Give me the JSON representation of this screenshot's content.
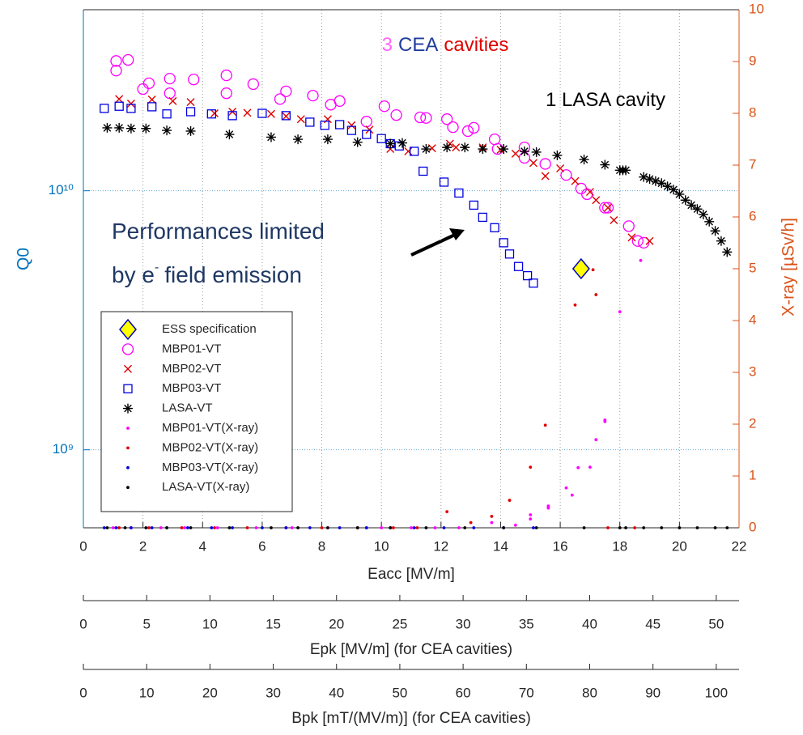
{
  "chart_data": {
    "type": "scatter",
    "xlabel": "Eacc [MV/m]",
    "ylabel": "Q0",
    "y2label": "X-ray [µSv/h]",
    "xlim": [
      0,
      22
    ],
    "xticks": [
      0,
      2,
      4,
      6,
      8,
      10,
      12,
      14,
      16,
      18,
      20,
      22
    ],
    "ylim": [
      500000000,
      50000000000
    ],
    "yscale": "log",
    "yticks": [
      {
        "value": 1000000000,
        "label": "10⁹"
      },
      {
        "value": 10000000000,
        "label": "10¹⁰"
      }
    ],
    "y2lim": [
      0,
      10
    ],
    "y2ticks": [
      0,
      1,
      2,
      3,
      4,
      5,
      6,
      7,
      8,
      9,
      10
    ],
    "y_color": "#0072bd",
    "y2_color": "#d95319",
    "grid": true,
    "legend": "lower left",
    "extra_x_axes": [
      {
        "label": "Epk [MV/m] (for CEA cavities)",
        "xlim": [
          0,
          51.8
        ],
        "xticks": [
          0,
          5,
          10,
          15,
          20,
          25,
          30,
          35,
          40,
          45,
          50
        ]
      },
      {
        "label": "Bpk [mT/(MV/m)] (for CEA cavities)",
        "xlim": [
          0,
          103.6
        ],
        "xticks": [
          0,
          10,
          20,
          30,
          40,
          50,
          60,
          70,
          80,
          90,
          100
        ]
      }
    ],
    "annotations": [
      {
        "parts": [
          {
            "text": "3",
            "color": "#ff66ff"
          },
          {
            "text": "CEA",
            "color": "#1f3c9c"
          },
          {
            "text": "cavities",
            "color": "#e00000"
          }
        ]
      },
      {
        "parts": [
          {
            "text": "1 LASA cavity",
            "color": "#000000"
          }
        ]
      },
      {
        "parts": [
          {
            "text": "Performances limited",
            "color": "#1f3864"
          }
        ]
      },
      {
        "parts": [
          {
            "text": "by e",
            "color": "#1f3864"
          },
          {
            "text": "-",
            "color": "#1f3864",
            "sup": true
          },
          {
            "text": "field emission",
            "color": "#1f3864"
          }
        ]
      }
    ],
    "series": [
      {
        "name": "ESS specification",
        "color": "#ffff00",
        "marker": "diamond",
        "axis": "y",
        "x": [
          16.7
        ],
        "values": [
          5000000000
        ]
      },
      {
        "name": "MBP01-VT",
        "color": "#ff00ff",
        "marker": "circle",
        "axis": "y",
        "x": [
          1.1,
          1.1,
          1.5,
          2.0,
          2.2,
          2.9,
          2.9,
          3.7,
          4.8,
          4.8,
          5.7,
          6.6,
          6.8,
          7.7,
          8.3,
          8.6,
          9.5,
          10.1,
          10.5,
          11.3,
          11.5,
          12.2,
          12.4,
          12.9,
          13.1,
          13.8,
          13.9,
          14.8,
          14.8,
          15.5,
          16.2,
          16.7,
          16.9,
          17.5,
          17.6,
          18.3,
          18.6,
          18.8
        ],
        "values": [
          31700000000,
          29100000000,
          32000000000,
          24700000000,
          26000000000,
          27100000000,
          23800000000,
          26900000000,
          27900000000,
          23800000000,
          25800000000,
          22600000000,
          24200000000,
          23300000000,
          21500000000,
          22200000000,
          18500000000,
          21200000000,
          19600000000,
          19200000000,
          19100000000,
          18900000000,
          17600000000,
          17000000000,
          17500000000,
          15800000000,
          14500000000,
          14700000000,
          13400000000,
          12700000000,
          11500000000,
          10200000000,
          9700000000,
          8600000000,
          8600000000,
          7300000000,
          6400000000,
          6300000000
        ]
      },
      {
        "name": "MBP02-VT",
        "color": "#e00000",
        "marker": "x",
        "axis": "y",
        "x": [
          1.2,
          1.6,
          2.3,
          3.0,
          3.6,
          4.4,
          5.0,
          5.5,
          6.3,
          6.8,
          7.3,
          8.2,
          9.0,
          9.6,
          10.3,
          10.9,
          11.7,
          12.3,
          12.5,
          13.4,
          14.0,
          14.5,
          15.1,
          15.5,
          16.0,
          16.5,
          17.0,
          17.2,
          17.6,
          17.8,
          18.4,
          19.0
        ],
        "values": [
          22600000000,
          21700000000,
          22500000000,
          22200000000,
          22000000000,
          19900000000,
          20200000000,
          20000000000,
          19800000000,
          19400000000,
          18900000000,
          18900000000,
          17900000000,
          17200000000,
          14500000000,
          14200000000,
          14600000000,
          15200000000,
          14700000000,
          14700000000,
          14400000000,
          13900000000,
          12800000000,
          11400000000,
          12200000000,
          10900000000,
          9900000000,
          9200000000,
          8600000000,
          7700000000,
          6600000000,
          6400000000
        ]
      },
      {
        "name": "MBP03-VT",
        "color": "#0000e0",
        "marker": "square",
        "axis": "y",
        "x": [
          0.7,
          1.2,
          1.6,
          2.3,
          2.8,
          3.6,
          4.3,
          5.0,
          6.0,
          6.8,
          7.6,
          8.1,
          8.6,
          9.0,
          9.5,
          10.0,
          10.3,
          10.6,
          11.1,
          11.4,
          12.1,
          12.6,
          13.1,
          13.4,
          13.8,
          14.1,
          14.3,
          14.6,
          14.9,
          15.1
        ],
        "values": [
          20800000000,
          21200000000,
          20800000000,
          21100000000,
          19800000000,
          20200000000,
          19800000000,
          19500000000,
          19900000000,
          19500000000,
          18400000000,
          17900000000,
          18000000000,
          17100000000,
          16500000000,
          15900000000,
          15200000000,
          14900000000,
          14200000000,
          11900000000,
          10800000000,
          9800000000,
          8800000000,
          7900000000,
          7200000000,
          6300000000,
          5700000000,
          5100000000,
          4700000000,
          4400000000
        ]
      },
      {
        "name": "LASA-VT",
        "color": "#000000",
        "marker": "asterisk",
        "axis": "y",
        "x": [
          0.8,
          1.2,
          1.6,
          2.1,
          2.8,
          3.6,
          4.9,
          6.3,
          7.2,
          8.2,
          9.2,
          10.3,
          10.7,
          11.5,
          12.2,
          12.8,
          13.4,
          14.1,
          14.8,
          15.2,
          15.9,
          16.8,
          17.5,
          18.0,
          18.1,
          18.2,
          18.8,
          19.0,
          19.2,
          19.4,
          19.6,
          19.8,
          20.0,
          20.2,
          20.4,
          20.6,
          20.8,
          21.0,
          21.2,
          21.4,
          21.6
        ],
        "values": [
          17500000000,
          17500000000,
          17400000000,
          17400000000,
          17100000000,
          17000000000,
          16500000000,
          16100000000,
          15800000000,
          15800000000,
          15400000000,
          15200000000,
          15300000000,
          14500000000,
          14700000000,
          14700000000,
          14500000000,
          14500000000,
          14200000000,
          14100000000,
          13700000000,
          13200000000,
          12600000000,
          12000000000,
          12000000000,
          12000000000,
          11300000000,
          11100000000,
          10900000000,
          10700000000,
          10400000000,
          10100000000,
          9700000000,
          9200000000,
          8800000000,
          8500000000,
          8100000000,
          7600000000,
          7000000000,
          6400000000,
          5800000000
        ]
      },
      {
        "name": "MBP01-VT(X-ray)",
        "color": "#ff00ff",
        "marker": "dot",
        "axis": "y2",
        "x": [
          1.0,
          1.6,
          2.6,
          3.4,
          4.5,
          5.8,
          7.0,
          8.2,
          9.5,
          10.0,
          11.0,
          11.8,
          12.6,
          13.7,
          14.5,
          15.0,
          15.0,
          15.6,
          15.6,
          16.2,
          16.4,
          16.6,
          17.0,
          17.2,
          17.5,
          17.5,
          18.0,
          18.7
        ],
        "values": [
          0,
          0,
          0,
          0,
          0,
          0,
          0,
          0,
          0,
          0,
          0,
          0,
          0,
          0.1,
          0.05,
          0.25,
          0.17,
          0.42,
          0.38,
          0.77,
          0.63,
          1.16,
          1.17,
          1.7,
          2.08,
          2.05,
          4.17,
          5.16
        ]
      },
      {
        "name": "MBP02-VT(X-ray)",
        "color": "#e00000",
        "marker": "dot",
        "axis": "y2",
        "x": [
          1.2,
          2.2,
          3.3,
          4.4,
          5.5,
          6.8,
          8.0,
          9.2,
          10.4,
          11.2,
          12.2,
          13.0,
          13.7,
          14.3,
          15.0,
          15.5,
          16.5,
          17.1,
          17.2,
          17.6,
          18.5
        ],
        "values": [
          0,
          0,
          0,
          0,
          0,
          0,
          0,
          0,
          0,
          0,
          0.31,
          0.1,
          0.22,
          0.53,
          1.17,
          1.98,
          4.3,
          4.98,
          4.5,
          0,
          0
        ]
      },
      {
        "name": "MBP03-VT(X-ray)",
        "color": "#0000e0",
        "marker": "dot",
        "axis": "y2",
        "x": [
          0.7,
          1.1,
          1.6,
          2.3,
          2.8,
          3.5,
          4.3,
          5.0,
          6.0,
          6.8,
          7.6,
          8.6,
          9.5,
          10.3,
          11.1,
          12.1,
          13.1,
          14.1,
          15.1
        ],
        "values": [
          0,
          0,
          0,
          0,
          0,
          0,
          0,
          0,
          0,
          0,
          0,
          0,
          0,
          0,
          0,
          0,
          0,
          0,
          0
        ]
      },
      {
        "name": "LASA-VT(X-ray)",
        "color": "#000000",
        "marker": "dot",
        "axis": "y2",
        "x": [
          0.8,
          1.4,
          2.1,
          2.8,
          3.6,
          4.9,
          6.3,
          7.2,
          8.2,
          9.2,
          10.3,
          11.5,
          12.8,
          14.1,
          15.2,
          16.8,
          18.0,
          18.2,
          18.8,
          19.4,
          20.0,
          20.6,
          21.2,
          21.6
        ],
        "values": [
          0,
          0,
          0,
          0,
          0,
          0,
          0,
          0,
          0,
          0,
          0,
          0,
          0,
          0,
          0,
          0,
          0,
          0,
          0,
          0,
          0,
          0,
          0,
          0
        ]
      }
    ]
  }
}
